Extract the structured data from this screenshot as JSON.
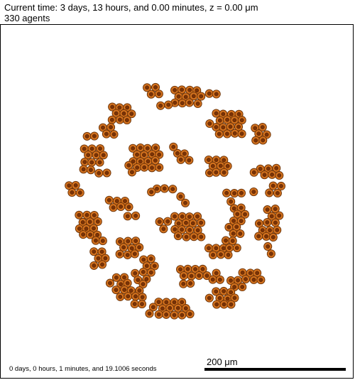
{
  "header": {
    "time_line": "Current time: 3 days, 13 hours, and 0.00 minutes, z = 0.00 μm",
    "agents_line": "330 agents"
  },
  "footer": {
    "elapsed": "0 days, 0 hours, 1 minutes, and 19.1006 seconds",
    "scale_label": "200 μm"
  },
  "colors": {
    "cell_fill": "#d2711e",
    "cell_stroke": "#6a3207",
    "nucleus_fill": "#7a3206"
  }
}
